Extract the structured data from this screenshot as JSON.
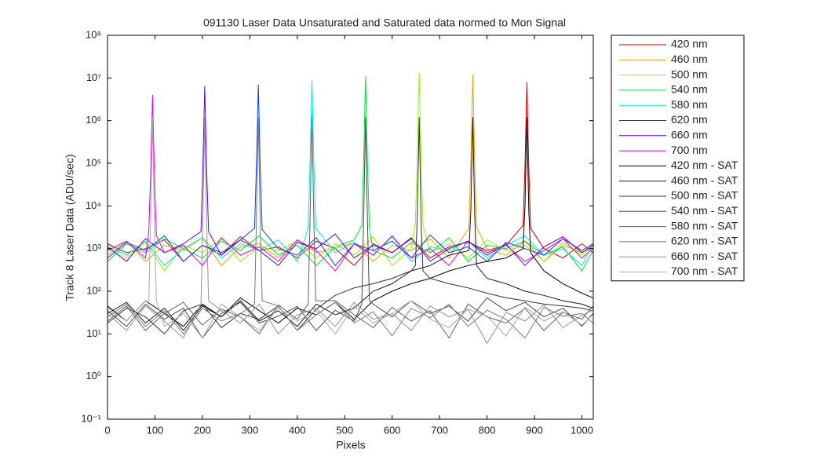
{
  "chart_data": {
    "type": "line",
    "title": "091130 Laser Data  Unsaturated and Saturated data normed to Mon Signal",
    "x_label": "Pixels",
    "y_label": "Track 8 Laser Data (ADU/sec)",
    "xlim": [
      0,
      1024
    ],
    "xticks": [
      0,
      100,
      200,
      300,
      400,
      500,
      600,
      700,
      800,
      900,
      1000
    ],
    "ylim": [
      0.1,
      100000000
    ],
    "log_y": true,
    "yticks": [
      {
        "value": 0.1,
        "label": "10⁻¹"
      },
      {
        "value": 1,
        "label": "10⁰"
      },
      {
        "value": 10,
        "label": "10¹"
      },
      {
        "value": 100,
        "label": "10²"
      },
      {
        "value": 1000,
        "label": "10³"
      },
      {
        "value": 10000,
        "label": "10⁴"
      },
      {
        "value": 100000,
        "label": "10⁵"
      },
      {
        "value": 1000000,
        "label": "10⁶"
      },
      {
        "value": 10000000,
        "label": "10⁷"
      },
      {
        "value": 100000000,
        "label": "10⁸"
      }
    ],
    "legend": "outside-right",
    "series": [
      {
        "name": "420 nm",
        "color": "#d00000",
        "x": [
          0,
          40,
          80,
          120,
          160,
          200,
          240,
          280,
          320,
          360,
          400,
          440,
          480,
          520,
          560,
          600,
          640,
          680,
          720,
          760,
          800,
          840,
          876,
          880,
          884,
          888,
          892,
          920,
          960,
          1000,
          1023
        ],
        "values": [
          1300,
          800,
          1000,
          1600,
          500,
          1200,
          700,
          1900,
          900,
          1100,
          600,
          1500,
          1000,
          400,
          1300,
          800,
          1700,
          600,
          1100,
          1400,
          900,
          1200,
          3500,
          90000,
          8000000,
          80000,
          3000,
          1000,
          600,
          1300,
          800
        ]
      },
      {
        "name": "460 nm",
        "color": "#f0a000",
        "x": [
          0,
          40,
          80,
          120,
          160,
          200,
          240,
          280,
          320,
          360,
          400,
          440,
          480,
          520,
          560,
          600,
          640,
          680,
          720,
          762,
          766,
          770,
          774,
          778,
          800,
          840,
          880,
          920,
          960,
          1000,
          1023
        ],
        "values": [
          700,
          1500,
          500,
          1200,
          900,
          1800,
          400,
          1100,
          1300,
          600,
          1600,
          800,
          1000,
          1400,
          500,
          1200,
          900,
          1700,
          600,
          3000,
          110000,
          12000000,
          100000,
          3200,
          1000,
          700,
          1500,
          500,
          1200,
          800,
          1100
        ]
      },
      {
        "name": "500 nm",
        "color": "#a0f000",
        "x": [
          0,
          40,
          80,
          120,
          160,
          200,
          240,
          280,
          320,
          360,
          400,
          440,
          480,
          520,
          560,
          600,
          640,
          649,
          653,
          657,
          661,
          665,
          680,
          720,
          760,
          800,
          840,
          880,
          920,
          960,
          1000,
          1023
        ],
        "values": [
          1000,
          600,
          1400,
          300,
          1200,
          800,
          1700,
          500,
          1100,
          900,
          1500,
          600,
          1300,
          700,
          1900,
          400,
          1000,
          4000,
          150000,
          13000000,
          120000,
          3500,
          800,
          1300,
          600,
          1600,
          900,
          1200,
          500,
          1400,
          700,
          1100
        ]
      },
      {
        "name": "540 nm",
        "color": "#00e040",
        "x": [
          0,
          40,
          80,
          120,
          160,
          200,
          240,
          280,
          320,
          360,
          400,
          440,
          480,
          520,
          536,
          540,
          544,
          548,
          552,
          560,
          600,
          640,
          680,
          720,
          760,
          800,
          840,
          880,
          920,
          960,
          1000,
          1023
        ],
        "values": [
          500,
          1300,
          800,
          1700,
          1000,
          600,
          1500,
          900,
          2000,
          700,
          1200,
          400,
          1100,
          1600,
          3500,
          120000,
          11000000,
          100000,
          3000,
          900,
          600,
          1400,
          800,
          1800,
          500,
          1200,
          1000,
          1500,
          700,
          1100,
          300,
          900
        ]
      },
      {
        "name": "580 nm",
        "color": "#00e8e8",
        "x": [
          0,
          40,
          80,
          120,
          160,
          200,
          240,
          280,
          320,
          360,
          400,
          423,
          427,
          431,
          435,
          439,
          480,
          520,
          560,
          600,
          640,
          680,
          720,
          760,
          800,
          840,
          880,
          920,
          960,
          1000,
          1023
        ],
        "values": [
          1200,
          700,
          1500,
          400,
          1000,
          1800,
          600,
          1300,
          900,
          1600,
          500,
          3000,
          100000,
          9000000,
          90000,
          3000,
          800,
          1400,
          700,
          1900,
          500,
          1100,
          900,
          1500,
          600,
          1200,
          2000,
          700,
          1000,
          400,
          1300
        ]
      },
      {
        "name": "620 nm",
        "color": "#0040e0",
        "x": [
          0,
          40,
          80,
          120,
          160,
          200,
          240,
          280,
          310,
          314,
          318,
          322,
          326,
          360,
          400,
          440,
          480,
          520,
          560,
          600,
          640,
          680,
          720,
          760,
          800,
          840,
          880,
          920,
          960,
          1000,
          1023
        ],
        "values": [
          600,
          1400,
          900,
          2000,
          500,
          1200,
          800,
          1600,
          3000,
          90000,
          7000000,
          80000,
          2800,
          1000,
          700,
          1800,
          400,
          1300,
          900,
          1500,
          600,
          2100,
          800,
          1100,
          500,
          1400,
          1000,
          700,
          1700,
          900,
          1300
        ]
      },
      {
        "name": "660 nm",
        "color": "#6000e0",
        "x": [
          0,
          40,
          80,
          120,
          160,
          197,
          201,
          205,
          209,
          213,
          240,
          280,
          320,
          360,
          400,
          440,
          480,
          520,
          560,
          600,
          640,
          680,
          720,
          760,
          800,
          840,
          880,
          920,
          960,
          1000,
          1023
        ],
        "values": [
          1100,
          500,
          1700,
          800,
          1300,
          2500,
          80000,
          6500000,
          70000,
          2500,
          700,
          1600,
          900,
          400,
          1400,
          1000,
          2200,
          600,
          1200,
          800,
          1800,
          500,
          1000,
          1500,
          700,
          1300,
          400,
          1100,
          1900,
          800,
          1200
        ]
      },
      {
        "name": "700 nm",
        "color": "#e000e0",
        "x": [
          0,
          40,
          80,
          87,
          91,
          95,
          99,
          103,
          120,
          160,
          200,
          240,
          280,
          320,
          360,
          400,
          440,
          480,
          520,
          560,
          600,
          640,
          680,
          720,
          760,
          800,
          840,
          880,
          920,
          960,
          1000,
          1023
        ],
        "values": [
          900,
          1500,
          600,
          2500,
          60000,
          4000000,
          50000,
          2000,
          800,
          1200,
          400,
          1800,
          700,
          1100,
          500,
          1600,
          900,
          300,
          1300,
          700,
          2000,
          600,
          1000,
          400,
          1500,
          800,
          1200,
          500,
          900,
          1700,
          600,
          1000
        ]
      },
      {
        "name": "420 nm - SAT",
        "color": "#000000",
        "x": [
          0,
          40,
          80,
          120,
          160,
          200,
          240,
          280,
          320,
          360,
          400,
          440,
          480,
          520,
          560,
          600,
          640,
          680,
          720,
          760,
          800,
          840,
          876,
          880,
          884,
          888,
          892,
          920,
          960,
          1000,
          1023
        ],
        "values": [
          45,
          20,
          60,
          30,
          15,
          50,
          25,
          70,
          35,
          18,
          40,
          28,
          55,
          22,
          60,
          100,
          150,
          200,
          300,
          400,
          500,
          600,
          1000,
          10000,
          1200000,
          8000,
          800,
          300,
          150,
          90,
          70
        ]
      },
      {
        "name": "460 nm - SAT",
        "color": "#181818",
        "x": [
          0,
          40,
          80,
          120,
          160,
          200,
          240,
          280,
          320,
          360,
          400,
          440,
          480,
          520,
          560,
          600,
          640,
          680,
          720,
          762,
          766,
          770,
          774,
          778,
          800,
          840,
          880,
          920,
          960,
          1000,
          1023
        ],
        "values": [
          30,
          55,
          18,
          40,
          12,
          45,
          25,
          60,
          20,
          35,
          15,
          50,
          28,
          40,
          100,
          150,
          300,
          400,
          700,
          900,
          8000,
          1200000,
          6000,
          400,
          200,
          150,
          100,
          80,
          60,
          50,
          40
        ]
      },
      {
        "name": "500 nm - SAT",
        "color": "#303030",
        "x": [
          0,
          40,
          80,
          120,
          160,
          200,
          240,
          280,
          320,
          360,
          400,
          440,
          480,
          520,
          560,
          600,
          640,
          649,
          653,
          657,
          661,
          665,
          680,
          720,
          760,
          800,
          840,
          880,
          920,
          960,
          1000,
          1023
        ],
        "values": [
          18,
          40,
          25,
          10,
          35,
          50,
          14,
          30,
          22,
          45,
          12,
          38,
          80,
          120,
          150,
          200,
          300,
          400,
          5000,
          1200000,
          4000,
          300,
          200,
          150,
          120,
          90,
          70,
          60,
          50,
          45,
          40,
          35
        ]
      },
      {
        "name": "540 nm - SAT",
        "color": "#484848",
        "x": [
          0,
          40,
          80,
          120,
          160,
          200,
          240,
          280,
          320,
          360,
          400,
          440,
          480,
          520,
          536,
          540,
          544,
          548,
          552,
          560,
          600,
          640,
          680,
          720,
          760,
          800,
          840,
          880,
          920,
          960,
          1000,
          1023
        ],
        "values": [
          35,
          15,
          50,
          22,
          40,
          8,
          30,
          55,
          18,
          26,
          44,
          12,
          36,
          20,
          50,
          5000,
          1200000,
          4000,
          60,
          50,
          25,
          60,
          30,
          45,
          20,
          70,
          35,
          55,
          25,
          40,
          15,
          30
        ]
      },
      {
        "name": "580 nm - SAT",
        "color": "#606060",
        "x": [
          0,
          40,
          80,
          120,
          160,
          200,
          240,
          280,
          320,
          360,
          400,
          423,
          427,
          431,
          435,
          439,
          480,
          520,
          560,
          600,
          640,
          680,
          720,
          760,
          800,
          840,
          880,
          920,
          960,
          1000,
          1023
        ],
        "values": [
          20,
          45,
          12,
          30,
          55,
          16,
          38,
          25,
          10,
          48,
          22,
          50,
          5000,
          1200000,
          4000,
          60,
          60,
          28,
          14,
          42,
          20,
          35,
          8,
          50,
          25,
          18,
          40,
          12,
          32,
          22,
          45
        ]
      },
      {
        "name": "620 nm - SAT",
        "color": "#787878",
        "x": [
          0,
          40,
          80,
          120,
          160,
          200,
          240,
          280,
          310,
          314,
          318,
          322,
          326,
          360,
          400,
          440,
          480,
          520,
          560,
          600,
          640,
          680,
          720,
          760,
          800,
          840,
          880,
          920,
          960,
          1000,
          1023
        ],
        "values": [
          25,
          50,
          15,
          35,
          10,
          40,
          20,
          30,
          50,
          5000,
          1200000,
          4000,
          60,
          45,
          12,
          28,
          55,
          18,
          33,
          9,
          40,
          24,
          50,
          15,
          36,
          22,
          8,
          42,
          26,
          30,
          18
        ]
      },
      {
        "name": "660 nm - SAT",
        "color": "#909090",
        "x": [
          0,
          40,
          80,
          120,
          160,
          197,
          201,
          205,
          209,
          213,
          240,
          280,
          320,
          360,
          400,
          440,
          480,
          520,
          560,
          600,
          640,
          680,
          720,
          760,
          800,
          840,
          880,
          920,
          960,
          1000,
          1023
        ],
        "values": [
          30,
          12,
          45,
          20,
          8,
          50,
          5000,
          1200000,
          4000,
          60,
          35,
          18,
          50,
          10,
          28,
          40,
          15,
          55,
          22,
          30,
          12,
          45,
          25,
          38,
          6,
          32,
          20,
          48,
          14,
          27,
          36
        ]
      },
      {
        "name": "700 nm - SAT",
        "color": "#a8a8a8",
        "x": [
          0,
          40,
          80,
          87,
          91,
          95,
          99,
          103,
          120,
          160,
          200,
          240,
          280,
          320,
          360,
          400,
          440,
          480,
          520,
          560,
          600,
          640,
          680,
          720,
          760,
          800,
          840,
          880,
          920,
          960,
          1000,
          1023
        ],
        "values": [
          40,
          20,
          60,
          50,
          5000,
          1200000,
          4000,
          60,
          15,
          30,
          8,
          50,
          25,
          12,
          40,
          20,
          35,
          10,
          45,
          18,
          30,
          60,
          22,
          14,
          38,
          26,
          9,
          42,
          20,
          33,
          16,
          28
        ]
      }
    ]
  }
}
